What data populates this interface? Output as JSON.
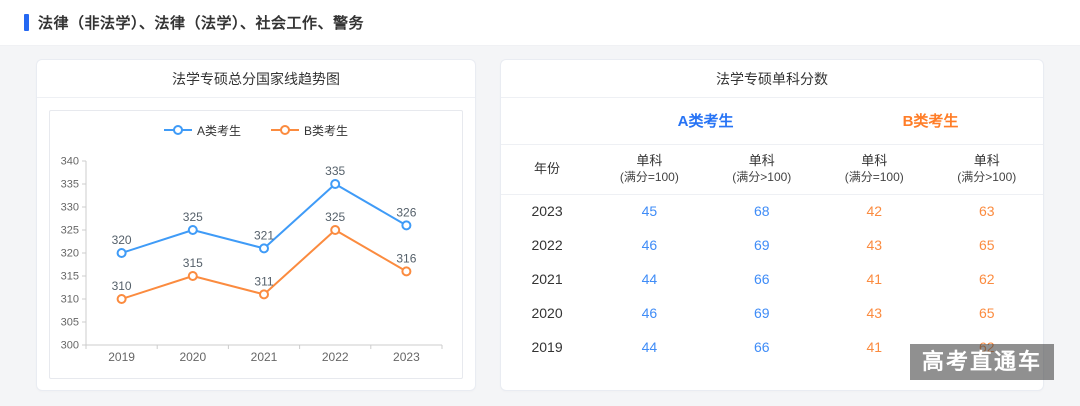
{
  "page": {
    "header_title": "法律（非法学）、法律（法学）、社会工作、警务"
  },
  "trend_card": {
    "title": "法学专硕总分国家线趋势图"
  },
  "score_card": {
    "title": "法学专硕单科分数",
    "group_a": "A类考生",
    "group_b": "B类考生",
    "columns": [
      {
        "title": "年份",
        "sub": ""
      },
      {
        "title": "单科",
        "sub": "(满分=100)"
      },
      {
        "title": "单科",
        "sub": "(满分>100)"
      },
      {
        "title": "单科",
        "sub": "(满分=100)"
      },
      {
        "title": "单科",
        "sub": "(满分>100)"
      }
    ],
    "rows": [
      {
        "year": "2023",
        "a1": "45",
        "a2": "68",
        "b1": "42",
        "b2": "63"
      },
      {
        "year": "2022",
        "a1": "46",
        "a2": "69",
        "b1": "43",
        "b2": "65"
      },
      {
        "year": "2021",
        "a1": "44",
        "a2": "66",
        "b1": "41",
        "b2": "62"
      },
      {
        "year": "2020",
        "a1": "46",
        "a2": "69",
        "b1": "43",
        "b2": "65"
      },
      {
        "year": "2019",
        "a1": "44",
        "a2": "66",
        "b1": "41",
        "b2": "62"
      }
    ]
  },
  "watermark": {
    "text": "高考直通车"
  },
  "colors": {
    "accent": "#2468f2",
    "series_a": "#3f9bf7",
    "series_b": "#fb8b3f"
  },
  "chart_data": {
    "type": "line",
    "title": "法学专硕总分国家线趋势图",
    "categories": [
      "2019",
      "2020",
      "2021",
      "2022",
      "2023"
    ],
    "series": [
      {
        "name": "A类考生",
        "color": "#3f9bf7",
        "values": [
          320,
          325,
          321,
          335,
          326
        ]
      },
      {
        "name": "B类考生",
        "color": "#fb8b3f",
        "values": [
          310,
          315,
          311,
          325,
          316
        ]
      }
    ],
    "xlabel": "",
    "ylabel": "",
    "ylim": [
      300,
      340
    ],
    "ytick_step": 5,
    "grid": false,
    "legend_position": "top",
    "point_labels": true
  }
}
